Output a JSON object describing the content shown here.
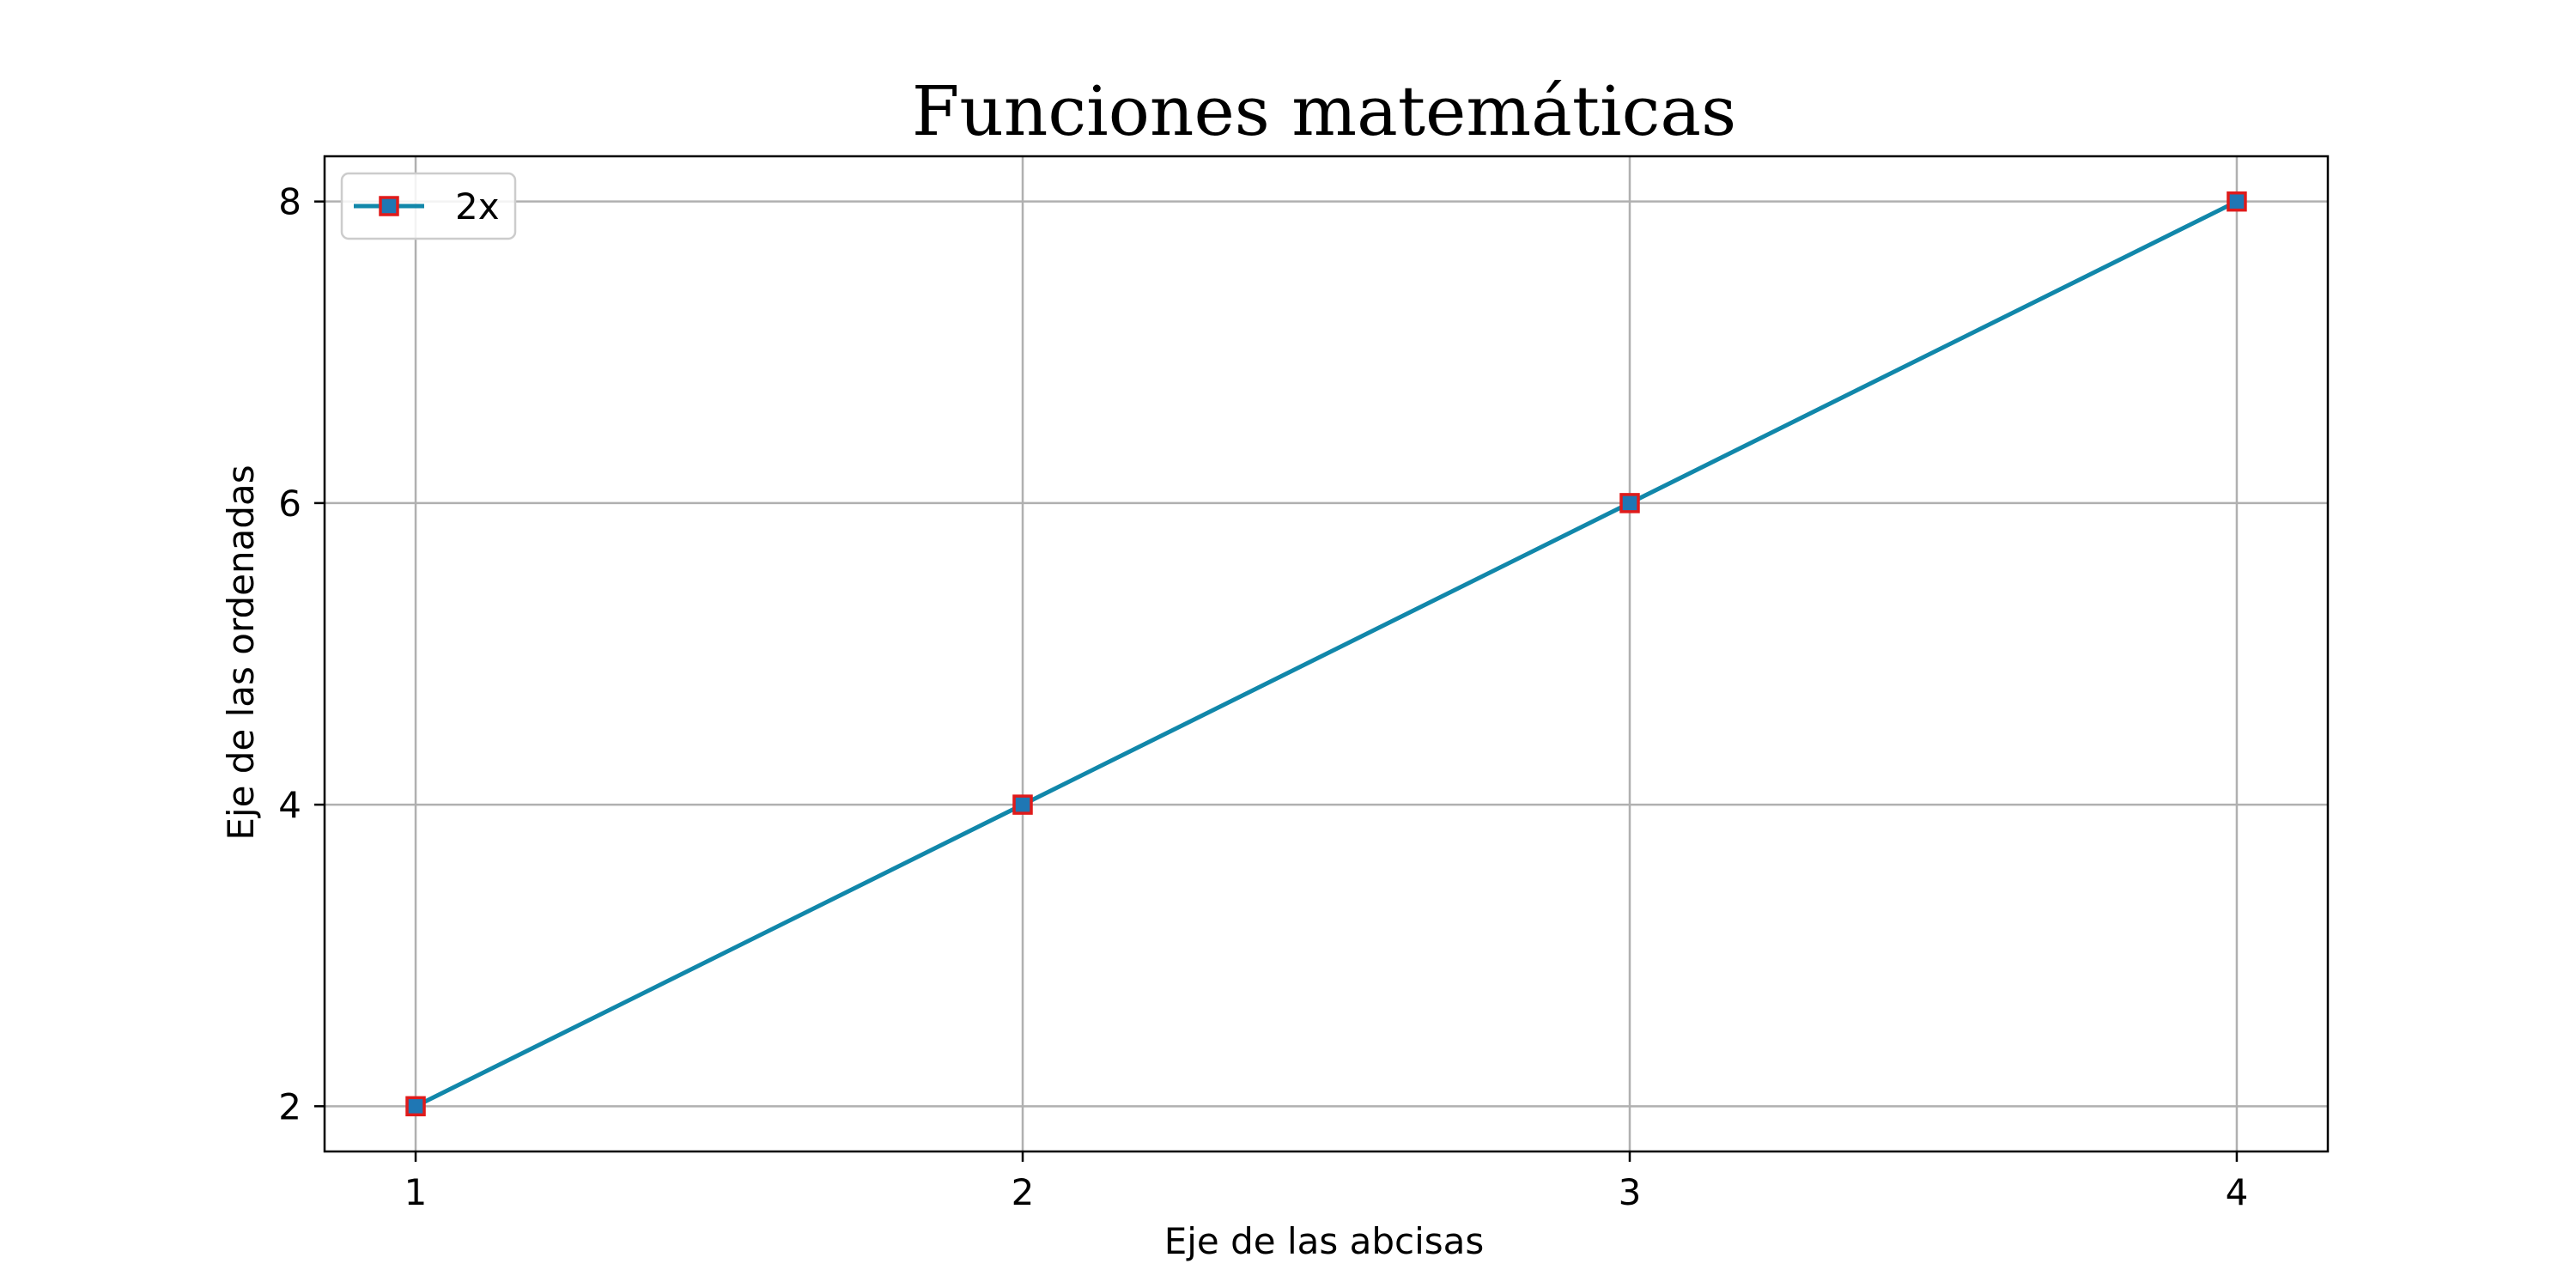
{
  "chart_data": {
    "type": "line",
    "title": "Funciones matemáticas",
    "xlabel": "Eje de las abcisas",
    "ylabel": "Eje de las ordenadas",
    "x": [
      1,
      2,
      3,
      4
    ],
    "xticks": [
      "1",
      "2",
      "3",
      "4"
    ],
    "yticks": [
      "2",
      "4",
      "6",
      "8"
    ],
    "xlim": [
      0.85,
      4.15
    ],
    "ylim": [
      1.7,
      8.3
    ],
    "grid": true,
    "legend_position": "upper-left",
    "series": [
      {
        "name": "2x",
        "values": [
          2,
          4,
          6,
          8
        ],
        "line_color": "#1187aa",
        "marker": "square",
        "marker_face_color": "#1f77b4",
        "marker_edge_color": "#e01b1b"
      }
    ],
    "colors": {
      "grid": "#b0b0b0",
      "axes": "#000000",
      "legend_border": "#cccccc"
    }
  }
}
